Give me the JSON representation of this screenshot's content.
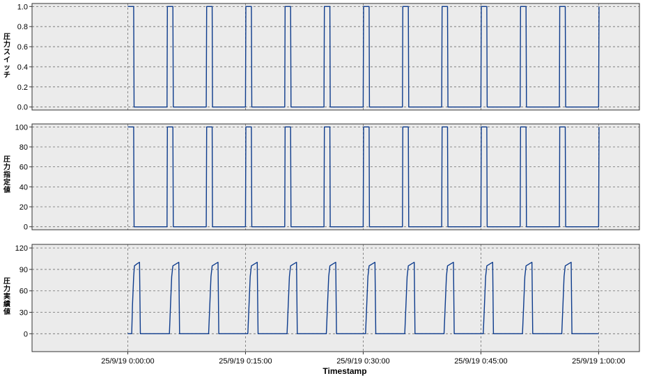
{
  "chart_data": [
    {
      "type": "line",
      "ylabel": "圧力スイッチ",
      "yticks": [
        0.0,
        0.2,
        0.4,
        0.6,
        0.8,
        1.0
      ],
      "ytick_labels": [
        "0.0",
        "0.2",
        "0.4",
        "0.6",
        "0.8",
        "1.0"
      ],
      "ylim": [
        -0.03,
        1.03
      ],
      "grid": true,
      "series": [
        {
          "color": "#0d3b8c",
          "x": [
            0.0,
            0.75,
            0.8,
            5.0,
            5.05,
            5.75,
            5.8,
            10.0,
            10.05,
            10.75,
            10.8,
            15.0,
            15.05,
            15.75,
            15.8,
            20.0,
            20.05,
            20.75,
            20.8,
            25.0,
            25.05,
            25.75,
            25.8,
            30.0,
            30.05,
            30.75,
            30.8,
            35.0,
            35.05,
            35.75,
            35.8,
            40.0,
            40.05,
            40.75,
            40.8,
            45.0,
            45.05,
            45.75,
            45.8,
            50.0,
            50.05,
            50.75,
            50.8,
            55.0,
            55.05,
            55.75,
            55.8,
            60.0,
            60.05
          ],
          "values": [
            1,
            1,
            0,
            0,
            1,
            1,
            0,
            0,
            1,
            1,
            0,
            0,
            1,
            1,
            0,
            0,
            1,
            1,
            0,
            0,
            1,
            1,
            0,
            0,
            1,
            1,
            0,
            0,
            1,
            1,
            0,
            0,
            1,
            1,
            0,
            0,
            1,
            1,
            0,
            0,
            1,
            1,
            0,
            0,
            1,
            1,
            0,
            0,
            1
          ]
        }
      ]
    },
    {
      "type": "line",
      "ylabel": "圧力指定値",
      "yticks": [
        0,
        20,
        40,
        60,
        80,
        100
      ],
      "ytick_labels": [
        "0",
        "20",
        "40",
        "60",
        "80",
        "100"
      ],
      "ylim": [
        -3,
        103
      ],
      "grid": true,
      "series": [
        {
          "color": "#0d3b8c",
          "x": [
            0.0,
            0.75,
            0.8,
            5.0,
            5.05,
            5.75,
            5.8,
            10.0,
            10.05,
            10.75,
            10.8,
            15.0,
            15.05,
            15.75,
            15.8,
            20.0,
            20.05,
            20.75,
            20.8,
            25.0,
            25.05,
            25.75,
            25.8,
            30.0,
            30.05,
            30.75,
            30.8,
            35.0,
            35.05,
            35.75,
            35.8,
            40.0,
            40.05,
            40.75,
            40.8,
            45.0,
            45.05,
            45.75,
            45.8,
            50.0,
            50.05,
            50.75,
            50.8,
            55.0,
            55.05,
            55.75,
            55.8,
            60.0,
            60.05
          ],
          "values": [
            100,
            100,
            0,
            0,
            100,
            100,
            0,
            0,
            100,
            100,
            0,
            0,
            100,
            100,
            0,
            0,
            100,
            100,
            0,
            0,
            100,
            100,
            0,
            0,
            100,
            100,
            0,
            0,
            100,
            100,
            0,
            0,
            100,
            100,
            0,
            0,
            100,
            100,
            0,
            0,
            100,
            100,
            0,
            0,
            100,
            100,
            0,
            0,
            100
          ]
        }
      ]
    },
    {
      "type": "line",
      "ylabel": "圧力実績値",
      "yticks": [
        0,
        30,
        60,
        90,
        120
      ],
      "ytick_labels": [
        "0",
        "30",
        "60",
        "90",
        "120"
      ],
      "ylim": [
        -25,
        125
      ],
      "grid": true,
      "series": [
        {
          "color": "#0d3b8c",
          "x": [
            0.0,
            0.5,
            0.6,
            0.75,
            0.85,
            1.2,
            1.5,
            1.6,
            5.0,
            5.3,
            5.45,
            5.6,
            5.75,
            6.2,
            6.5,
            6.6,
            10.0,
            10.3,
            10.45,
            10.6,
            10.75,
            11.2,
            11.5,
            11.6,
            15.0,
            15.3,
            15.45,
            15.6,
            15.75,
            16.2,
            16.5,
            16.6,
            20.0,
            20.3,
            20.45,
            20.6,
            20.75,
            21.2,
            21.5,
            21.6,
            25.0,
            25.3,
            25.45,
            25.6,
            25.75,
            26.2,
            26.5,
            26.6,
            30.0,
            30.3,
            30.45,
            30.6,
            30.75,
            31.2,
            31.5,
            31.6,
            35.0,
            35.3,
            35.45,
            35.6,
            35.75,
            36.2,
            36.5,
            36.6,
            40.0,
            40.3,
            40.45,
            40.6,
            40.75,
            41.2,
            41.5,
            41.6,
            45.0,
            45.3,
            45.45,
            45.6,
            45.75,
            46.2,
            46.5,
            46.6,
            50.0,
            50.3,
            50.45,
            50.6,
            50.75,
            51.2,
            51.5,
            51.6,
            55.0,
            55.3,
            55.45,
            55.6,
            55.75,
            56.2,
            56.5,
            56.6,
            60.0
          ],
          "values": [
            0,
            0,
            40,
            80,
            95,
            98,
            100,
            0,
            0,
            0,
            40,
            80,
            95,
            98,
            100,
            0,
            0,
            0,
            40,
            80,
            95,
            98,
            100,
            0,
            0,
            0,
            40,
            80,
            95,
            98,
            100,
            0,
            0,
            0,
            40,
            80,
            95,
            98,
            100,
            0,
            0,
            0,
            40,
            80,
            95,
            98,
            100,
            0,
            0,
            0,
            40,
            80,
            95,
            98,
            100,
            0,
            0,
            0,
            40,
            80,
            95,
            98,
            100,
            0,
            0,
            0,
            40,
            80,
            95,
            98,
            100,
            0,
            0,
            0,
            40,
            80,
            95,
            98,
            100,
            0,
            0,
            0,
            40,
            80,
            95,
            98,
            100,
            0,
            0,
            0,
            40,
            80,
            95,
            98,
            100,
            0,
            0
          ]
        }
      ]
    }
  ],
  "x_axis": {
    "label": "Timestamp",
    "xlim": [
      -12.2,
      65.2
    ],
    "ticks": [
      0,
      15,
      30,
      45,
      60
    ],
    "tick_labels": [
      "25/9/19 0:00:00",
      "25/9/19 0:15:00",
      "25/9/19 0:30:00",
      "25/9/19 0:45:00",
      "25/9/19 1:00:00"
    ]
  },
  "style": {
    "plot_bg": "#ebebeb",
    "grid_color": "#6e6e6e",
    "frame_color": "#333333",
    "line_color": "#0d3b8c"
  }
}
